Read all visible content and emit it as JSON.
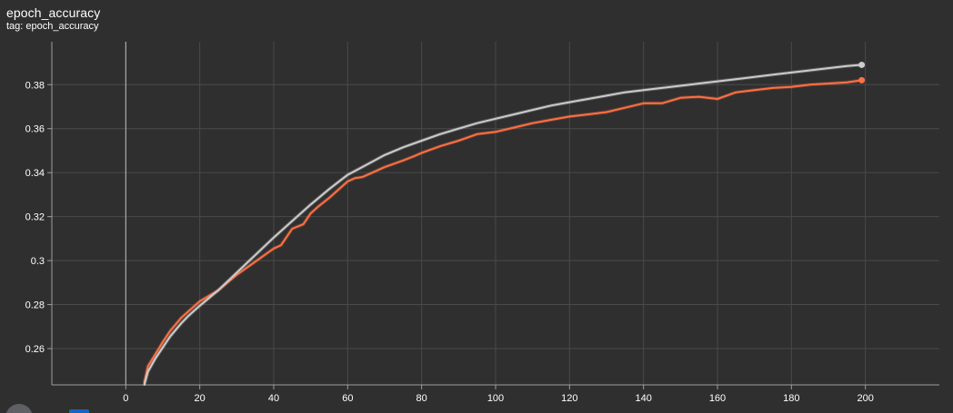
{
  "header": {
    "title": "epoch_accuracy",
    "tag": "tag: epoch_accuracy"
  },
  "chart_data": {
    "type": "line",
    "title": "epoch_accuracy",
    "subtitle": "tag: epoch_accuracy",
    "xlabel": "",
    "ylabel": "",
    "xlim": [
      -20,
      220
    ],
    "ylim": [
      0.2435,
      0.3995
    ],
    "x_ticks": [
      0,
      20,
      40,
      60,
      80,
      100,
      120,
      140,
      160,
      180,
      200
    ],
    "y_ticks": [
      0.26,
      0.28,
      0.3,
      0.32,
      0.34,
      0.36,
      0.38
    ],
    "y_tick_labels": [
      "0.26",
      "0.28",
      "0.3",
      "0.32",
      "0.34",
      "0.36",
      "0.38"
    ],
    "grid": true,
    "legend": "none",
    "series": [
      {
        "color": "#ff7043",
        "endpoint_marker": true,
        "x": [
          5,
          6,
          8,
          10,
          12,
          15,
          17,
          20,
          25,
          30,
          35,
          40,
          42,
          45,
          48,
          50,
          52,
          55,
          58,
          60,
          62,
          64,
          66,
          70,
          75,
          78,
          80,
          85,
          90,
          95,
          100,
          105,
          110,
          115,
          120,
          125,
          130,
          135,
          140,
          145,
          150,
          155,
          160,
          165,
          170,
          175,
          180,
          185,
          190,
          195,
          199
        ],
        "y": [
          0.2445,
          0.252,
          0.2575,
          0.263,
          0.268,
          0.274,
          0.277,
          0.2815,
          0.2865,
          0.2935,
          0.2995,
          0.3055,
          0.307,
          0.3145,
          0.3165,
          0.3215,
          0.3245,
          0.3285,
          0.333,
          0.336,
          0.3375,
          0.338,
          0.3395,
          0.3425,
          0.3455,
          0.3475,
          0.349,
          0.352,
          0.3545,
          0.3575,
          0.3585,
          0.3605,
          0.3625,
          0.364,
          0.3655,
          0.3665,
          0.3675,
          0.3695,
          0.3715,
          0.3715,
          0.374,
          0.3745,
          0.3735,
          0.3765,
          0.3775,
          0.3785,
          0.379,
          0.38,
          0.3805,
          0.381,
          0.382
        ]
      },
      {
        "color": "#cccccc",
        "endpoint_marker": true,
        "x": [
          5,
          6,
          8,
          10,
          12,
          15,
          17,
          20,
          25,
          30,
          35,
          40,
          45,
          50,
          55,
          60,
          65,
          70,
          75,
          80,
          85,
          90,
          95,
          100,
          105,
          110,
          115,
          120,
          125,
          130,
          135,
          140,
          145,
          150,
          155,
          160,
          165,
          170,
          175,
          180,
          185,
          190,
          195,
          199
        ],
        "y": [
          0.2435,
          0.2495,
          0.2555,
          0.2605,
          0.2655,
          0.2715,
          0.275,
          0.2795,
          0.2865,
          0.2945,
          0.3025,
          0.3105,
          0.318,
          0.3255,
          0.3325,
          0.339,
          0.3435,
          0.348,
          0.3515,
          0.3545,
          0.3575,
          0.36,
          0.3625,
          0.3645,
          0.3665,
          0.3685,
          0.3705,
          0.372,
          0.3735,
          0.375,
          0.3765,
          0.3775,
          0.3785,
          0.3795,
          0.3805,
          0.3815,
          0.3825,
          0.3835,
          0.3845,
          0.3855,
          0.3865,
          0.3875,
          0.3885,
          0.389
        ]
      }
    ]
  }
}
